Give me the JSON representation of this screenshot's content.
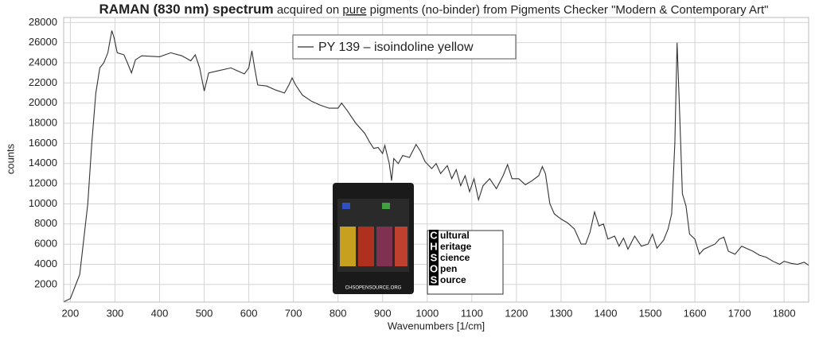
{
  "chart_data": {
    "type": "line",
    "title": "RAMAN (830 nm) spectrum",
    "subtitle_parts": [
      "acquired on",
      "pure",
      "pigments (no-binder) from Pigments Checker \"Modern & Contemporary Art\""
    ],
    "x_label": "Wavenumbers [1/cm]",
    "y_label": "counts",
    "x": [
      186,
      200,
      221,
      239,
      248,
      257,
      266,
      275,
      284,
      293,
      298,
      305,
      320,
      328,
      337,
      346,
      360,
      400,
      425,
      450,
      470,
      480,
      490,
      500,
      510,
      530,
      560,
      575,
      590,
      600,
      607,
      613,
      620,
      640,
      660,
      680,
      690,
      697,
      705,
      720,
      740,
      760,
      780,
      800,
      808,
      820,
      840,
      860,
      870,
      880,
      890,
      900,
      905,
      915,
      920,
      925,
      935,
      945,
      960,
      975,
      985,
      995,
      1010,
      1020,
      1030,
      1045,
      1055,
      1065,
      1075,
      1085,
      1095,
      1105,
      1115,
      1125,
      1140,
      1155,
      1170,
      1180,
      1190,
      1205,
      1220,
      1235,
      1250,
      1258,
      1265,
      1275,
      1285,
      1300,
      1315,
      1330,
      1345,
      1355,
      1365,
      1375,
      1385,
      1395,
      1405,
      1420,
      1430,
      1440,
      1450,
      1465,
      1480,
      1495,
      1505,
      1515,
      1530,
      1540,
      1548,
      1555,
      1560,
      1565,
      1572,
      1580,
      1588,
      1600,
      1610,
      1620,
      1630,
      1645,
      1655,
      1665,
      1675,
      1690,
      1705,
      1715,
      1730,
      1745,
      1760,
      1775,
      1790,
      1800,
      1815,
      1830,
      1845,
      1855
    ],
    "series": [
      {
        "name": "PY 139 – isoindoline yellow",
        "color": "#333333",
        "values": [
          300,
          600,
          3000,
          10000,
          16000,
          21000,
          23500,
          24000,
          25000,
          27200,
          26500,
          25000,
          24800,
          24000,
          23000,
          24300,
          24700,
          24600,
          25000,
          24700,
          24200,
          24800,
          23500,
          21200,
          23000,
          23200,
          23500,
          23200,
          22900,
          23500,
          25200,
          23500,
          21800,
          21700,
          21300,
          21000,
          21800,
          22500,
          21800,
          20800,
          20200,
          19800,
          19500,
          19500,
          20000,
          19300,
          18000,
          17000,
          16200,
          15500,
          15600,
          15000,
          15800,
          14000,
          12300,
          14500,
          14000,
          14800,
          14600,
          15900,
          15200,
          14200,
          13500,
          14000,
          13000,
          13800,
          12500,
          13400,
          11800,
          12800,
          11200,
          12500,
          10400,
          11800,
          12500,
          11500,
          12800,
          13900,
          12500,
          12500,
          11900,
          12300,
          12800,
          13700,
          13000,
          10000,
          9000,
          8500,
          8100,
          7500,
          6000,
          6000,
          7200,
          9200,
          7800,
          8000,
          6500,
          6800,
          5800,
          6600,
          5500,
          6800,
          5800,
          6000,
          7000,
          5600,
          6400,
          7500,
          9000,
          16000,
          26000,
          20000,
          11000,
          9800,
          7000,
          6500,
          5000,
          5500,
          5700,
          6000,
          6500,
          6700,
          5300,
          5000,
          5800,
          5600,
          5300,
          4900,
          4700,
          4300,
          4000,
          4300,
          4100,
          4000,
          4200,
          3900
        ]
      }
    ],
    "xlim": [
      185,
      1855
    ],
    "ylim": [
      250,
      28500
    ],
    "xticks": [
      200,
      300,
      400,
      500,
      600,
      700,
      800,
      900,
      1000,
      1100,
      1200,
      1300,
      1400,
      1500,
      1600,
      1700,
      1800
    ],
    "yticks": [
      2000,
      4000,
      6000,
      8000,
      10000,
      12000,
      14000,
      16000,
      18000,
      20000,
      22000,
      24000,
      26000,
      28000
    ],
    "grid": true
  },
  "logo": {
    "letters": [
      "C",
      "H",
      "S",
      "O",
      "S"
    ],
    "words": [
      "ultural",
      "eritage",
      "cience",
      "pen",
      "ource"
    ],
    "card_caption": "CHSOPENSOURCE.ORG"
  }
}
